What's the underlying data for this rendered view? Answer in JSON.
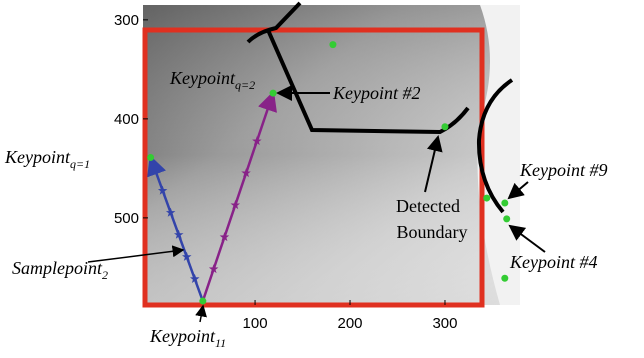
{
  "chart_data": {
    "type": "scatter",
    "x": [
      119,
      -10,
      45,
      363,
      365,
      182,
      300,
      344,
      363
    ],
    "values": [
      374,
      439,
      584,
      485,
      501,
      325,
      408,
      480,
      561
    ],
    "color": "#33cc33",
    "xlim": [
      -18,
      379
    ],
    "ylim": [
      285,
      588
    ],
    "y_inverted": true,
    "xticks": [
      100,
      200,
      300
    ],
    "yticks": [
      300,
      400,
      500
    ],
    "annotations": [
      {
        "text": "Keypoint",
        "sub": "q=2"
      },
      {
        "text": "Keypoint #2"
      },
      {
        "text": "Keypoint",
        "sub": "q=1"
      },
      {
        "text": "Keypoint #9"
      },
      {
        "text": "Detected"
      },
      {
        "text": "Boundary"
      },
      {
        "text": "Keypoint #4"
      },
      {
        "text": "Samplepoint",
        "sub": "2"
      },
      {
        "text": "Keypoint",
        "sub": "11"
      }
    ]
  }
}
